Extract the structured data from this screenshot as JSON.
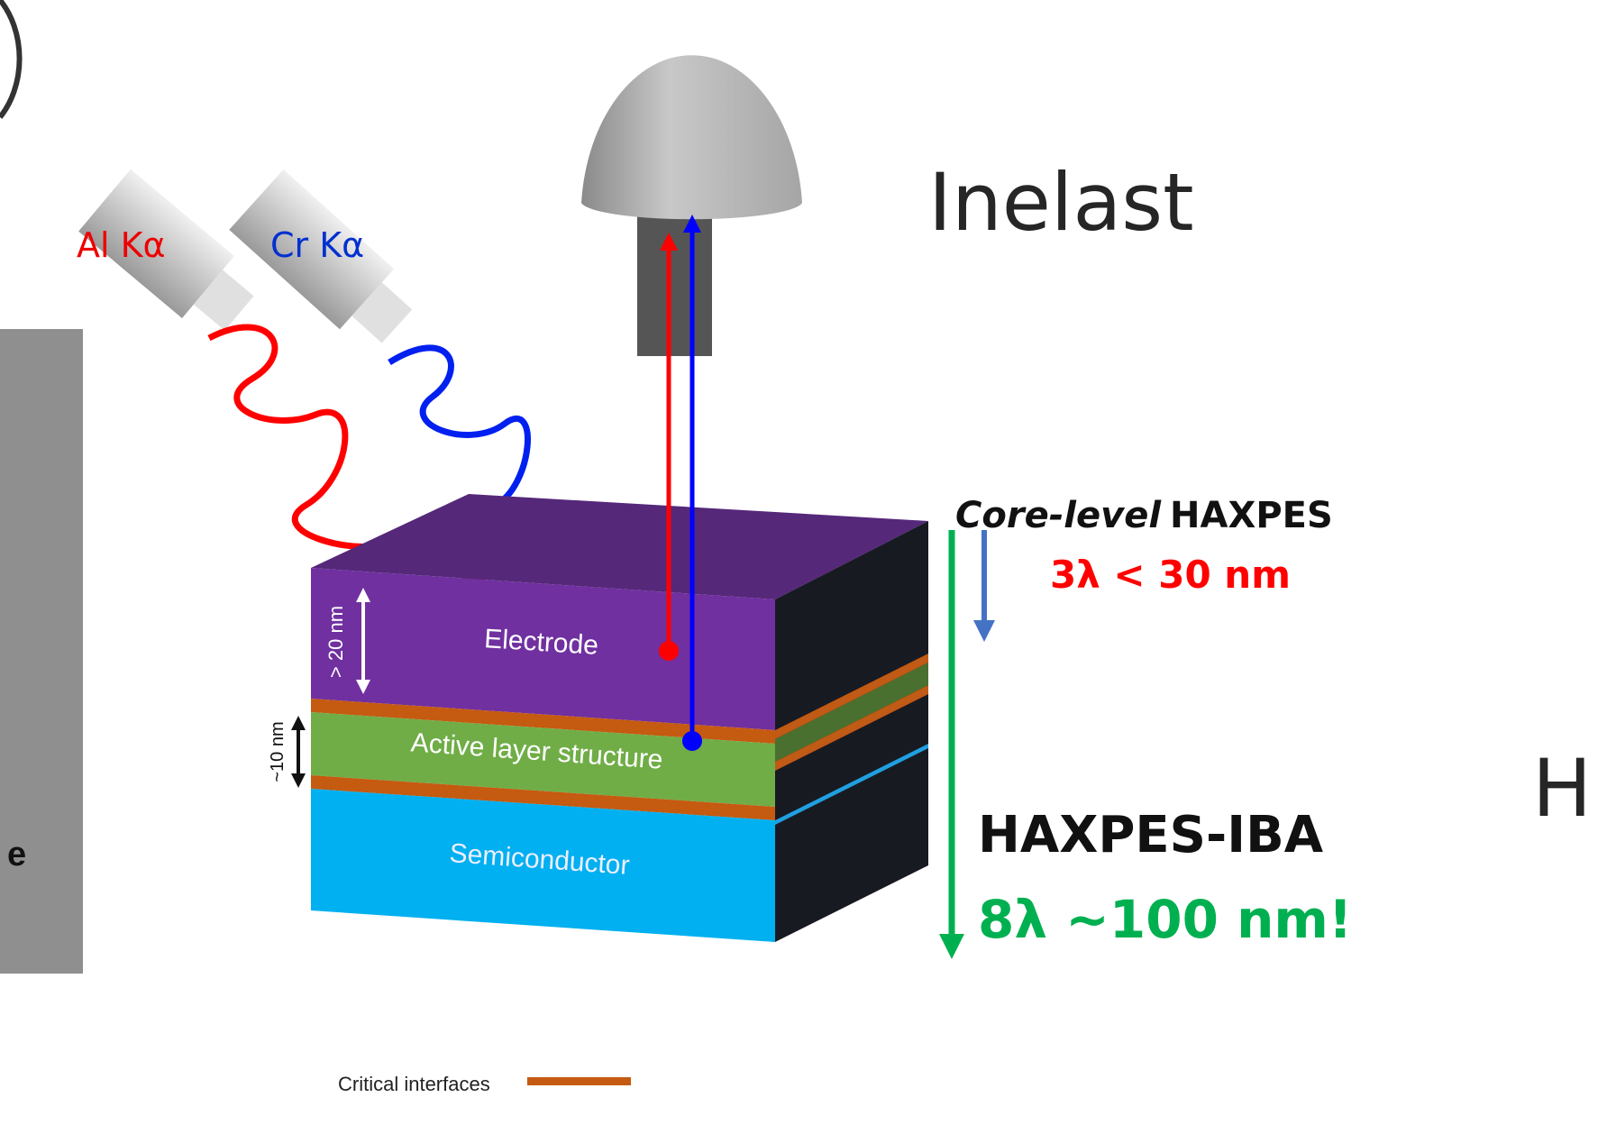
{
  "sources": [
    {
      "label": "Al Kα"
    },
    {
      "label": "Cr Kα"
    }
  ],
  "layers": [
    {
      "label": "Electrode"
    },
    {
      "label": "Active layer structure"
    },
    {
      "label": "Semiconductor"
    }
  ],
  "dimensions": [
    {
      "label": "> 20 nm"
    },
    {
      "label": "~10 nm"
    }
  ],
  "legend": {
    "label": "Critical interfaces"
  },
  "heading": "Inelast",
  "heading_right": "H",
  "core_level": {
    "mode": "Core-level",
    "method": "HAXPES",
    "depth": "3λ < 30 nm"
  },
  "iba": {
    "method": "HAXPES-IBA",
    "depth": "8λ ~100 nm!"
  },
  "left_panel": {
    "label": "e"
  }
}
